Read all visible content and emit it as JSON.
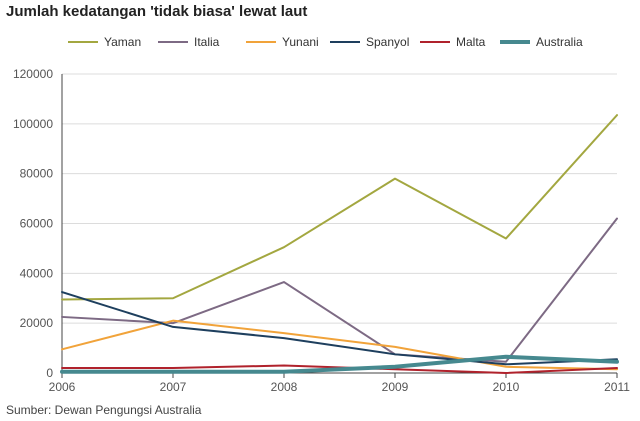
{
  "title": "Jumlah kedatangan 'tidak biasa' lewat laut",
  "source": "Sumber: Dewan Pengungsi Australia",
  "chart_data": {
    "type": "line",
    "title": "Jumlah kedatangan 'tidak biasa' lewat laut",
    "x": [
      "2006",
      "2007",
      "2008",
      "2009",
      "2010",
      "2011"
    ],
    "ylim": [
      0,
      120000
    ],
    "yticks": [
      0,
      20000,
      40000,
      60000,
      80000,
      100000,
      120000
    ],
    "ytick_labels": [
      "0",
      "20000",
      "40000",
      "60000",
      "80000",
      "100000",
      "120000"
    ],
    "grid": true,
    "legend_position": "top",
    "series": [
      {
        "name": "Yaman",
        "color": "#a3a740",
        "values": [
          29500,
          30000,
          50500,
          78000,
          54000,
          103500
        ]
      },
      {
        "name": "Italia",
        "color": "#7d6a84",
        "values": [
          22500,
          20000,
          36500,
          7500,
          4500,
          62000
        ]
      },
      {
        "name": "Yunani",
        "color": "#f1a33a",
        "values": [
          9500,
          21000,
          16000,
          10500,
          2500,
          1500
        ]
      },
      {
        "name": "Spanyol",
        "color": "#1e3f5e",
        "values": [
          32500,
          18500,
          14000,
          7500,
          3500,
          5500
        ]
      },
      {
        "name": "Malta",
        "color": "#b0222c",
        "values": [
          2000,
          2000,
          3000,
          1500,
          0,
          2000
        ]
      },
      {
        "name": "Australia",
        "color": "#46898f",
        "values": [
          500,
          500,
          500,
          2500,
          6500,
          4500
        ]
      }
    ]
  }
}
